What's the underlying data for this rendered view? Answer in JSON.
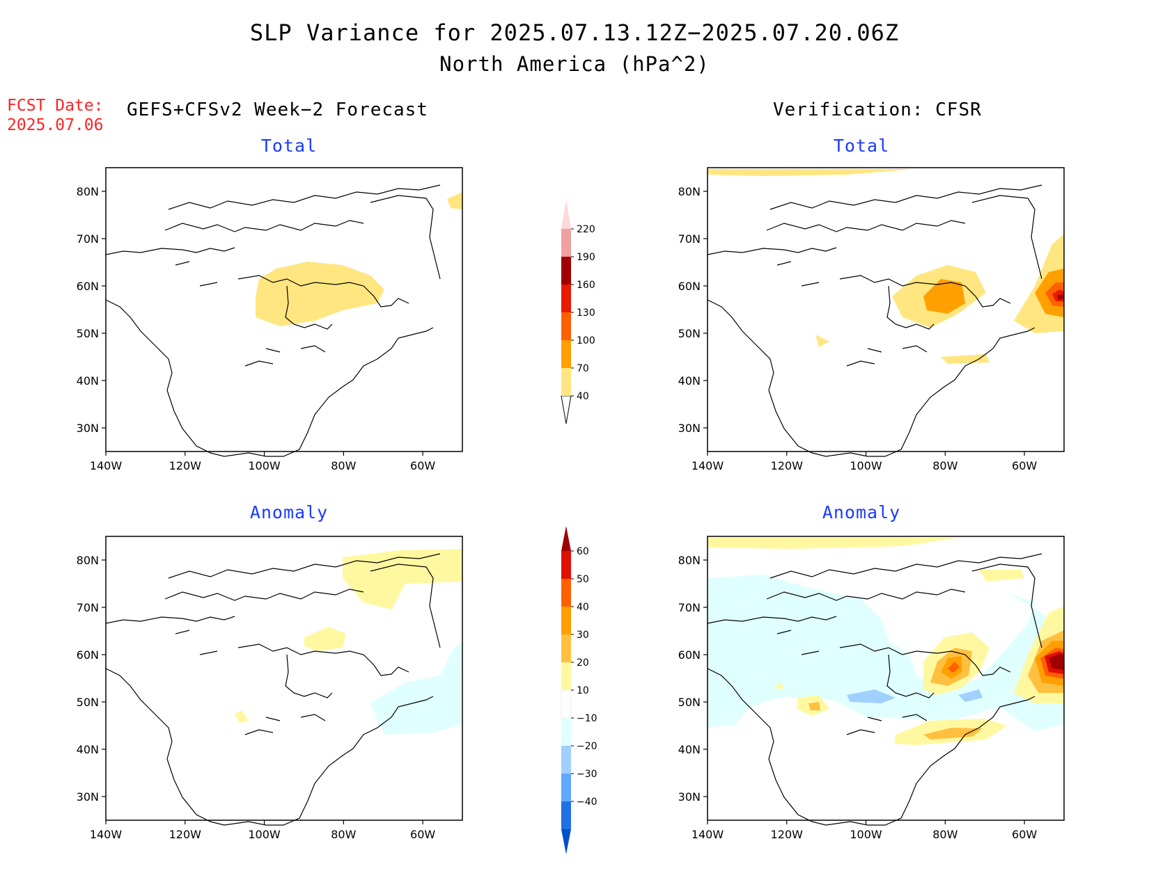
{
  "title": "SLP Variance for 2025.07.13.12Z−2025.07.20.06Z",
  "subtitle": "North America (hPa^2)",
  "fcst_label": "FCST Date:",
  "fcst_date": "2025.07.06",
  "left_header": "GEFS+CFSv2 Week−2 Forecast",
  "right_header": "Verification: CFSR",
  "panel_titles": {
    "total": "Total",
    "anomaly": "Anomaly"
  },
  "lat_labels": [
    "80N",
    "70N",
    "60N",
    "50N",
    "40N",
    "30N"
  ],
  "lon_labels": [
    "140W",
    "120W",
    "100W",
    "80W",
    "60W"
  ],
  "map_extent": {
    "lon": [
      -140,
      -50
    ],
    "lat": [
      25,
      85
    ]
  },
  "colorbar_total": {
    "levels": [
      "40",
      "70",
      "100",
      "130",
      "160",
      "190",
      "220"
    ],
    "colors": [
      "#ffe680",
      "#ffa000",
      "#ff6000",
      "#e81a00",
      "#a00000",
      "#f0a0a0",
      "#ffd8d8"
    ]
  },
  "colorbar_anomaly": {
    "levels": [
      "60",
      "50",
      "40",
      "30",
      "20",
      "10",
      "−10",
      "−20",
      "−30",
      "−40"
    ],
    "colors": [
      "#a00000",
      "#e01000",
      "#ff6000",
      "#ffa000",
      "#ffc040",
      "#fff8a0",
      "#ffffff",
      "#e0ffff",
      "#a0d0ff",
      "#60a8ff",
      "#2070e8",
      "#0050c8"
    ]
  },
  "panels": [
    {
      "id": "forecast-total",
      "title_key": "total"
    },
    {
      "id": "verification-total",
      "title_key": "total"
    },
    {
      "id": "forecast-anomaly",
      "title_key": "anomaly"
    },
    {
      "id": "verification-anomaly",
      "title_key": "anomaly"
    }
  ]
}
